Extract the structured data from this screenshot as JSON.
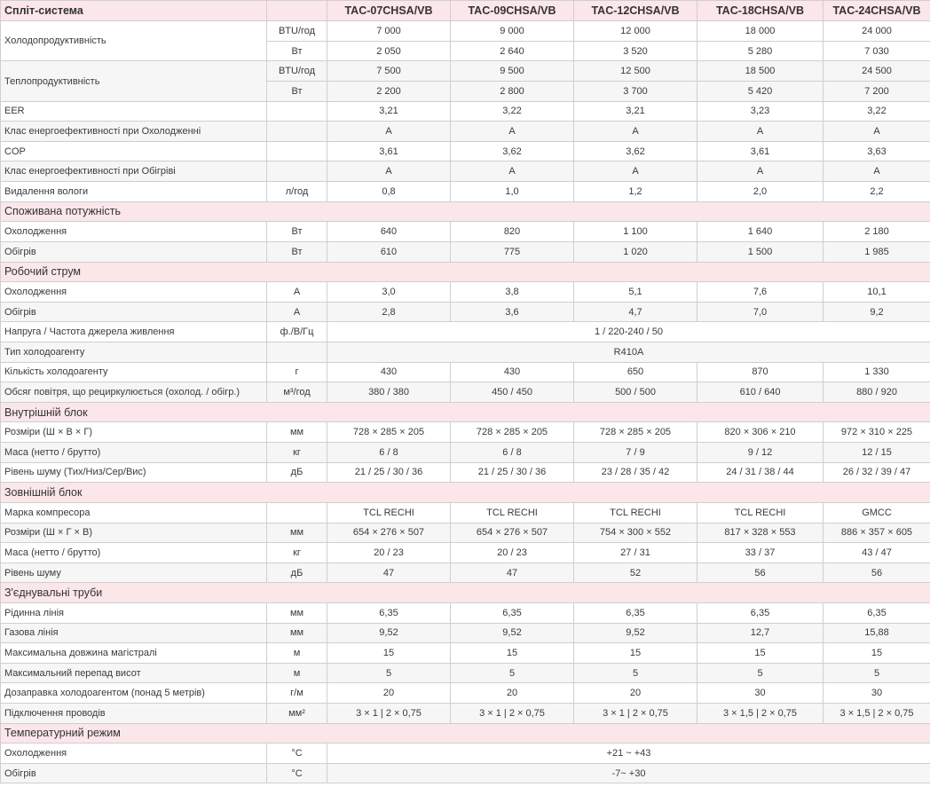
{
  "table": {
    "title": "Спліт-система",
    "models": [
      "TAC-07CHSA/VB",
      "TAC-09CHSA/VB",
      "TAC-12CHSA/VB",
      "TAC-18CHSA/VB",
      "TAC-24CHSA/VB"
    ],
    "rows": [
      {
        "kind": "double",
        "label": "Холодопродуктивність",
        "sub": [
          {
            "unit": "BTU/год",
            "values": [
              "7 000",
              "9 000",
              "12 000",
              "18 000",
              "24 000"
            ]
          },
          {
            "unit": "Вт",
            "values": [
              "2 050",
              "2 640",
              "3 520",
              "5 280",
              "7 030"
            ]
          }
        ]
      },
      {
        "kind": "double",
        "label": "Теплопродуктивність",
        "sub": [
          {
            "unit": "BTU/год",
            "values": [
              "7 500",
              "9 500",
              "12 500",
              "18 500",
              "24 500"
            ]
          },
          {
            "unit": "Вт",
            "values": [
              "2 200",
              "2 800",
              "3 700",
              "5 420",
              "7 200"
            ]
          }
        ]
      },
      {
        "kind": "row",
        "label": "EER",
        "unit": "",
        "values": [
          "3,21",
          "3,22",
          "3,21",
          "3,23",
          "3,22"
        ]
      },
      {
        "kind": "row",
        "label": "Клас енергоефективності при Охолодженні",
        "unit": "",
        "values": [
          "A",
          "A",
          "A",
          "A",
          "A"
        ]
      },
      {
        "kind": "row",
        "label": "COP",
        "unit": "",
        "values": [
          "3,61",
          "3,62",
          "3,62",
          "3,61",
          "3,63"
        ]
      },
      {
        "kind": "row",
        "label": "Клас енергоефективності при Обігріві",
        "unit": "",
        "values": [
          "A",
          "A",
          "A",
          "A",
          "A"
        ]
      },
      {
        "kind": "row",
        "label": "Видалення вологи",
        "unit": "л/год",
        "values": [
          "0,8",
          "1,0",
          "1,2",
          "2,0",
          "2,2"
        ]
      },
      {
        "kind": "section",
        "label": "Споживана потужність"
      },
      {
        "kind": "row",
        "label": "Охолодження",
        "unit": "Вт",
        "values": [
          "640",
          "820",
          "1 100",
          "1 640",
          "2 180"
        ]
      },
      {
        "kind": "row",
        "label": "Обігрів",
        "unit": "Вт",
        "values": [
          "610",
          "775",
          "1 020",
          "1 500",
          "1 985"
        ]
      },
      {
        "kind": "section",
        "label": "Робочий струм"
      },
      {
        "kind": "row",
        "label": "Охолодження",
        "unit": "A",
        "values": [
          "3,0",
          "3,8",
          "5,1",
          "7,6",
          "10,1"
        ]
      },
      {
        "kind": "row",
        "label": "Обігрів",
        "unit": "A",
        "values": [
          "2,8",
          "3,6",
          "4,7",
          "7,0",
          "9,2"
        ]
      },
      {
        "kind": "span",
        "label": "Напруга / Частота джерела живлення",
        "unit": "ф./В/Гц",
        "value": "1 / 220-240 / 50"
      },
      {
        "kind": "span",
        "label": "Тип холодоагенту",
        "unit": "",
        "value": "R410A"
      },
      {
        "kind": "row",
        "label": "Кількість холодоагенту",
        "unit": "г",
        "values": [
          "430",
          "430",
          "650",
          "870",
          "1 330"
        ]
      },
      {
        "kind": "row",
        "label": "Обсяг повітря, що рециркулюється (охолод. / обігр.)",
        "unit": "м³/год",
        "values": [
          "380 / 380",
          "450 / 450",
          "500 / 500",
          "610 / 640",
          "880 / 920"
        ]
      },
      {
        "kind": "section",
        "label": "Внутрішній блок"
      },
      {
        "kind": "row",
        "label": "Розміри (Ш × В × Г)",
        "unit": "мм",
        "values": [
          "728 × 285 × 205",
          "728 × 285 × 205",
          "728 × 285 × 205",
          "820 × 306 × 210",
          "972 × 310 × 225"
        ]
      },
      {
        "kind": "row",
        "label": "Маса (нетто / брутто)",
        "unit": "кг",
        "values": [
          "6 / 8",
          "6 / 8",
          "7 / 9",
          "9 / 12",
          "12 / 15"
        ]
      },
      {
        "kind": "row",
        "label": "Рівень шуму (Тих/Низ/Сер/Вис)",
        "unit": "дБ",
        "values": [
          "21 / 25 / 30 / 36",
          "21 / 25 / 30 / 36",
          "23 / 28 / 35 / 42",
          "24 / 31 / 38 / 44",
          "26 / 32 / 39 / 47"
        ]
      },
      {
        "kind": "section",
        "label": "Зовнішній блок"
      },
      {
        "kind": "row",
        "label": "Марка компресора",
        "unit": "",
        "values": [
          "TCL RECHI",
          "TCL RECHI",
          "TCL RECHI",
          "TCL RECHI",
          "GMCC"
        ]
      },
      {
        "kind": "row",
        "label": "Розміри (Ш × Г × В)",
        "unit": "мм",
        "values": [
          "654 × 276 × 507",
          "654 × 276 × 507",
          "754 × 300 × 552",
          "817 × 328 × 553",
          "886 × 357 × 605"
        ]
      },
      {
        "kind": "row",
        "label": "Маса (нетто / брутто)",
        "unit": "кг",
        "values": [
          "20 / 23",
          "20 / 23",
          "27 / 31",
          "33 / 37",
          "43 / 47"
        ]
      },
      {
        "kind": "row",
        "label": "Рівень шуму",
        "unit": "дБ",
        "values": [
          "47",
          "47",
          "52",
          "56",
          "56"
        ]
      },
      {
        "kind": "section",
        "label": "З'єднувальні труби"
      },
      {
        "kind": "row",
        "label": "Рідинна лінія",
        "unit": "мм",
        "values": [
          "6,35",
          "6,35",
          "6,35",
          "6,35",
          "6,35"
        ]
      },
      {
        "kind": "row",
        "label": "Газова лінія",
        "unit": "мм",
        "values": [
          "9,52",
          "9,52",
          "9,52",
          "12,7",
          "15,88"
        ]
      },
      {
        "kind": "row",
        "label": "Максимальна довжина магістралі",
        "unit": "м",
        "values": [
          "15",
          "15",
          "15",
          "15",
          "15"
        ]
      },
      {
        "kind": "row",
        "label": "Максимальний перепад висот",
        "unit": "м",
        "values": [
          "5",
          "5",
          "5",
          "5",
          "5"
        ]
      },
      {
        "kind": "row",
        "label": "Дозаправка холодоагентом (понад 5 метрів)",
        "unit": "г/м",
        "values": [
          "20",
          "20",
          "20",
          "30",
          "30"
        ]
      },
      {
        "kind": "row",
        "label": "Підключення проводів",
        "unit": "мм²",
        "values": [
          "3 × 1 | 2 × 0,75",
          "3 × 1 | 2 × 0,75",
          "3 × 1 | 2 × 0,75",
          "3 × 1,5 | 2 × 0,75",
          "3 × 1,5 | 2 × 0,75"
        ]
      },
      {
        "kind": "section",
        "label": "Температурний режим"
      },
      {
        "kind": "span",
        "label": "Охолодження",
        "unit": "°С",
        "value": "+21 ~ +43"
      },
      {
        "kind": "span",
        "label": "Обігрів",
        "unit": "°С",
        "value": "-7~ +30"
      }
    ]
  }
}
